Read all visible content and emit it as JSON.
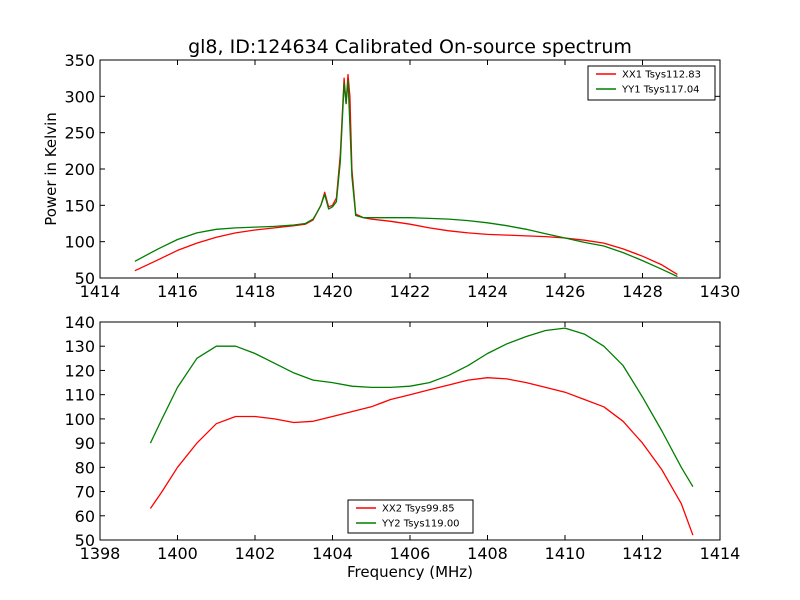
{
  "chart_data": [
    {
      "type": "line",
      "title": "gl8, ID:124634 Calibrated On-source spectrum",
      "xlabel": "",
      "ylabel": "Power in Kelvin",
      "xlim": [
        1414,
        1430
      ],
      "ylim": [
        50,
        350
      ],
      "xticks": [
        1414,
        1416,
        1418,
        1420,
        1422,
        1424,
        1426,
        1428,
        1430
      ],
      "yticks": [
        50,
        100,
        150,
        200,
        250,
        300,
        350
      ],
      "legend_position": "top-right",
      "grid": false,
      "series": [
        {
          "name": "XX1 Tsys112.83",
          "color": "#ff0000",
          "points": [
            [
              1414.9,
              60
            ],
            [
              1415.5,
              75
            ],
            [
              1416,
              88
            ],
            [
              1416.5,
              98
            ],
            [
              1417,
              106
            ],
            [
              1417.5,
              112
            ],
            [
              1418,
              116
            ],
            [
              1418.5,
              119
            ],
            [
              1419,
              122
            ],
            [
              1419.3,
              124
            ],
            [
              1419.5,
              130
            ],
            [
              1419.6,
              140
            ],
            [
              1419.7,
              150
            ],
            [
              1419.8,
              168
            ],
            [
              1419.9,
              148
            ],
            [
              1420,
              150
            ],
            [
              1420.1,
              160
            ],
            [
              1420.2,
              220
            ],
            [
              1420.3,
              325
            ],
            [
              1420.35,
              290
            ],
            [
              1420.4,
              330
            ],
            [
              1420.45,
              300
            ],
            [
              1420.5,
              200
            ],
            [
              1420.6,
              138
            ],
            [
              1420.8,
              133
            ],
            [
              1421,
              131
            ],
            [
              1421.5,
              128
            ],
            [
              1422,
              124
            ],
            [
              1422.5,
              119
            ],
            [
              1423,
              115
            ],
            [
              1423.5,
              112
            ],
            [
              1424,
              110
            ],
            [
              1424.5,
              109
            ],
            [
              1425,
              108
            ],
            [
              1425.5,
              107
            ],
            [
              1426,
              105
            ],
            [
              1426.5,
              102
            ],
            [
              1427,
              98
            ],
            [
              1427.5,
              90
            ],
            [
              1428,
              80
            ],
            [
              1428.5,
              68
            ],
            [
              1428.9,
              55
            ]
          ]
        },
        {
          "name": "YY1 Tsys117.04",
          "color": "#007f00",
          "points": [
            [
              1414.9,
              73
            ],
            [
              1415.5,
              90
            ],
            [
              1416,
              103
            ],
            [
              1416.5,
              112
            ],
            [
              1417,
              117
            ],
            [
              1417.5,
              119
            ],
            [
              1418,
              120
            ],
            [
              1418.5,
              121
            ],
            [
              1419,
              123
            ],
            [
              1419.3,
              125
            ],
            [
              1419.5,
              131
            ],
            [
              1419.6,
              140
            ],
            [
              1419.7,
              150
            ],
            [
              1419.8,
              165
            ],
            [
              1419.9,
              145
            ],
            [
              1420,
              148
            ],
            [
              1420.1,
              155
            ],
            [
              1420.2,
              210
            ],
            [
              1420.3,
              318
            ],
            [
              1420.35,
              290
            ],
            [
              1420.4,
              322
            ],
            [
              1420.45,
              260
            ],
            [
              1420.5,
              190
            ],
            [
              1420.6,
              136
            ],
            [
              1420.8,
              133
            ],
            [
              1421,
              133
            ],
            [
              1421.5,
              133
            ],
            [
              1422,
              133
            ],
            [
              1422.5,
              132
            ],
            [
              1423,
              131
            ],
            [
              1423.5,
              129
            ],
            [
              1424,
              126
            ],
            [
              1424.5,
              122
            ],
            [
              1425,
              117
            ],
            [
              1425.5,
              111
            ],
            [
              1426,
              105
            ],
            [
              1426.5,
              99
            ],
            [
              1427,
              94
            ],
            [
              1427.5,
              85
            ],
            [
              1428,
              74
            ],
            [
              1428.5,
              62
            ],
            [
              1428.9,
              52
            ]
          ]
        }
      ]
    },
    {
      "type": "line",
      "title": "",
      "xlabel": "Frequency (MHz)",
      "ylabel": "",
      "xlim": [
        1398,
        1414
      ],
      "ylim": [
        50,
        140
      ],
      "xticks": [
        1398,
        1400,
        1402,
        1404,
        1406,
        1408,
        1410,
        1412,
        1414
      ],
      "yticks": [
        50,
        60,
        70,
        80,
        90,
        100,
        110,
        120,
        130,
        140
      ],
      "legend_position": "bottom-center",
      "grid": false,
      "series": [
        {
          "name": "XX2 Tsys99.85",
          "color": "#ff0000",
          "points": [
            [
              1399.3,
              63
            ],
            [
              1399.6,
              70
            ],
            [
              1400,
              80
            ],
            [
              1400.5,
              90
            ],
            [
              1401,
              98
            ],
            [
              1401.5,
              101
            ],
            [
              1402,
              101
            ],
            [
              1402.5,
              100
            ],
            [
              1403,
              98.5
            ],
            [
              1403.5,
              99
            ],
            [
              1404,
              101
            ],
            [
              1404.5,
              103
            ],
            [
              1405,
              105
            ],
            [
              1405.5,
              108
            ],
            [
              1406,
              110
            ],
            [
              1406.5,
              112
            ],
            [
              1407,
              114
            ],
            [
              1407.5,
              116
            ],
            [
              1408,
              117
            ],
            [
              1408.5,
              116.5
            ],
            [
              1409,
              115
            ],
            [
              1409.5,
              113
            ],
            [
              1410,
              111
            ],
            [
              1410.5,
              108
            ],
            [
              1411,
              105
            ],
            [
              1411.5,
              99
            ],
            [
              1412,
              90
            ],
            [
              1412.5,
              79
            ],
            [
              1413,
              65
            ],
            [
              1413.3,
              52
            ]
          ]
        },
        {
          "name": "YY2 Tsys119.00",
          "color": "#007f00",
          "points": [
            [
              1399.3,
              90
            ],
            [
              1399.6,
              100
            ],
            [
              1400,
              113
            ],
            [
              1400.5,
              125
            ],
            [
              1401,
              130
            ],
            [
              1401.5,
              130
            ],
            [
              1402,
              127
            ],
            [
              1402.5,
              123
            ],
            [
              1403,
              119
            ],
            [
              1403.5,
              116
            ],
            [
              1404,
              115
            ],
            [
              1404.5,
              113.5
            ],
            [
              1405,
              113
            ],
            [
              1405.5,
              113
            ],
            [
              1406,
              113.5
            ],
            [
              1406.5,
              115
            ],
            [
              1407,
              118
            ],
            [
              1407.5,
              122
            ],
            [
              1408,
              127
            ],
            [
              1408.5,
              131
            ],
            [
              1409,
              134
            ],
            [
              1409.5,
              136.5
            ],
            [
              1410,
              137.5
            ],
            [
              1410.5,
              135
            ],
            [
              1411,
              130
            ],
            [
              1411.5,
              122
            ],
            [
              1412,
              109
            ],
            [
              1412.5,
              95
            ],
            [
              1413,
              80
            ],
            [
              1413.3,
              72
            ]
          ]
        }
      ]
    }
  ]
}
